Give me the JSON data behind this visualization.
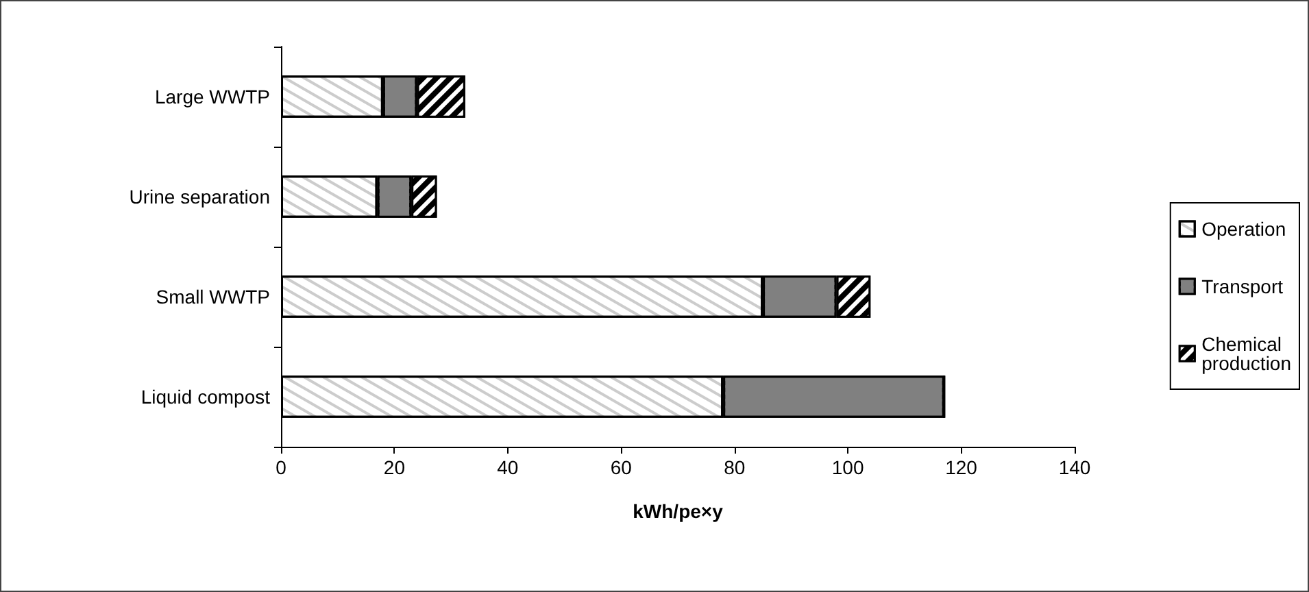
{
  "chart_data": {
    "type": "bar",
    "orientation": "horizontal",
    "stacked": true,
    "xlabel": "kWh/pe×y",
    "categories": [
      "Large WWTP",
      "Urine separation",
      "Small WWTP",
      "Liquid compost"
    ],
    "series": [
      {
        "name": "Operation",
        "color": "#ffffff",
        "values": [
          18,
          17,
          85,
          78
        ]
      },
      {
        "name": "Transport",
        "color": "#808080",
        "values": [
          6,
          6,
          13,
          39
        ]
      },
      {
        "name": "Chemical production",
        "color": "#000000",
        "values": [
          8.5,
          4.5,
          6,
          0
        ]
      }
    ],
    "xlim": [
      0,
      140
    ],
    "xticks": [
      0,
      20,
      40,
      60,
      80,
      100,
      120,
      140
    ],
    "grid": false,
    "legend": "right"
  }
}
